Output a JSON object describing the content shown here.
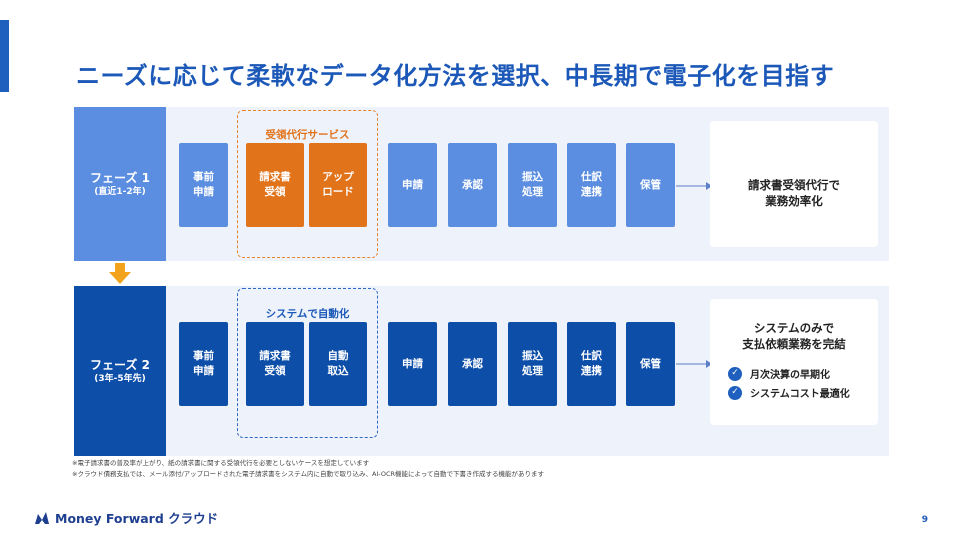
{
  "title": "ニーズに応じて柔軟なデータ化方法を選択、中長期で電子化を目指す",
  "colors": {
    "accent": "#1f5fbd",
    "phase1": "#5b8ee0",
    "phase2": "#0d4ea8",
    "orange": "#e1731a",
    "band": "#eef2fb",
    "down_arrow": "#f3a31b"
  },
  "phase1": {
    "name": "フェーズ 1",
    "sub": "(直近1-2年)",
    "group_label": "受領代行サービス",
    "steps": [
      "事前\n申請",
      "請求書\n受領",
      "アップ\nロード",
      "申請",
      "承認",
      "振込\n処理",
      "仕訳\n連携",
      "保管"
    ],
    "result": "請求書受領代行で\n業務効率化"
  },
  "phase2": {
    "name": "フェーズ 2",
    "sub": "(3年-5年先)",
    "group_label": "システムで自動化",
    "steps": [
      "事前\n申請",
      "請求書\n受領",
      "自動\n取込",
      "申請",
      "承認",
      "振込\n処理",
      "仕訳\n連携",
      "保管"
    ],
    "result": "システムのみで\n支払依頼業務を完結",
    "checks": [
      "月次決算の早期化",
      "システムコスト最適化"
    ],
    "check_icon": "checkmark-icon"
  },
  "notes": [
    "※電子請求書の普及率が上がり、紙の請求書に関する受領代行を必要としないケースを想定しています",
    "※クラウド債務支払では、メール添付/アップロードされた電子請求書をシステム内に自動で取り込み、AI-OCR機能によって自動で下書き作成する機能があります"
  ],
  "logo": {
    "text": "Money Forward クラウド",
    "icon": "money-forward-logo-icon"
  },
  "page_number": "9"
}
